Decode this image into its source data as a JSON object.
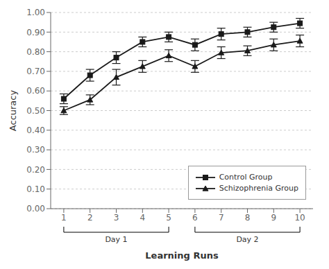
{
  "chart_data": {
    "type": "line",
    "x": [
      1,
      2,
      3,
      4,
      5,
      6,
      7,
      8,
      9,
      10
    ],
    "series": [
      {
        "name": "Control Group",
        "color": "#1a1a1a",
        "marker": "square",
        "line_style": "solid",
        "values": [
          0.56,
          0.68,
          0.77,
          0.85,
          0.875,
          0.835,
          0.89,
          0.9,
          0.925,
          0.945
        ],
        "errors": [
          0.025,
          0.03,
          0.03,
          0.025,
          0.025,
          0.03,
          0.03,
          0.025,
          0.025,
          0.025
        ]
      },
      {
        "name": "Schizophrenia Group",
        "color": "#1a1a1a",
        "marker": "triangle",
        "line_style": "solid",
        "values": [
          0.5,
          0.555,
          0.67,
          0.725,
          0.78,
          0.725,
          0.795,
          0.805,
          0.835,
          0.855
        ],
        "errors": [
          0.02,
          0.025,
          0.04,
          0.03,
          0.03,
          0.03,
          0.03,
          0.025,
          0.03,
          0.03
        ]
      }
    ],
    "ylabel": "Accuracy",
    "xlabel": "Learning Runs",
    "xlim": [
      0.5,
      10.5
    ],
    "xticks": [
      1,
      2,
      3,
      4,
      5,
      6,
      7,
      8,
      9,
      10
    ],
    "ylim": [
      0.0,
      1.0
    ],
    "yticks": [
      {
        "value": 0.0,
        "label": "0.00"
      },
      {
        "value": 0.1,
        "label": "0.10"
      },
      {
        "value": 0.2,
        "label": "0.20"
      },
      {
        "value": 0.3,
        "label": "0.30"
      },
      {
        "value": 0.4,
        "label": "0.40"
      },
      {
        "value": 0.5,
        "label": "0.50"
      },
      {
        "value": 0.6,
        "label": "0.60"
      },
      {
        "value": 0.7,
        "label": "0.70"
      },
      {
        "value": 0.8,
        "label": "0.80"
      },
      {
        "value": 0.9,
        "label": "0.90"
      },
      {
        "value": 1.0,
        "label": "1.00"
      }
    ],
    "grid": "y",
    "legend": "lower right",
    "annotations": [
      {
        "text": "Day 1",
        "x": [
          1,
          5
        ]
      },
      {
        "text": "Day 2",
        "x": [
          6,
          10
        ]
      }
    ]
  }
}
